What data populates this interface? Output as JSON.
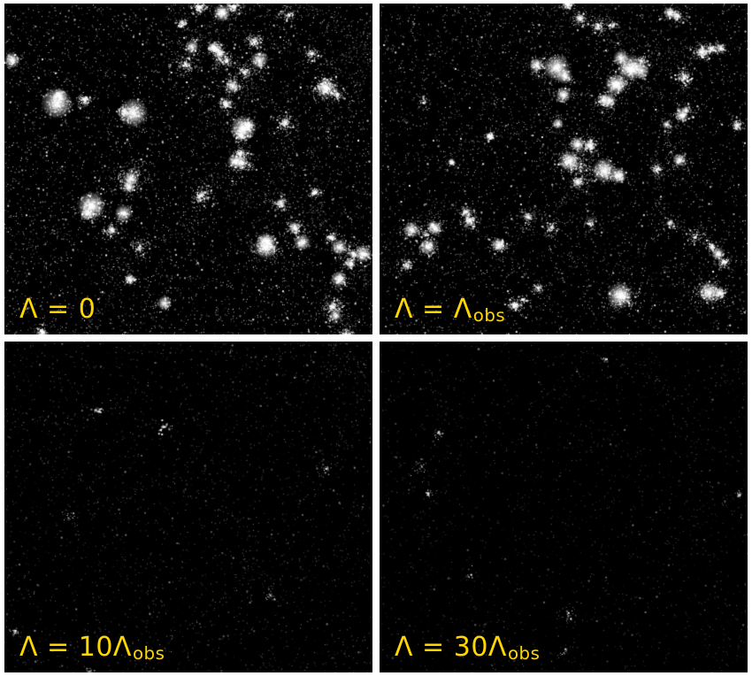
{
  "figure": {
    "frame_background": "#ffffff",
    "panel_background": "#000000",
    "label_color": "#ffd700",
    "particle_color": "#ffffff",
    "panels": [
      {
        "id": "lambda-0",
        "label": {
          "main": "Λ = 0",
          "subscript": ""
        },
        "render": {
          "seed": 101,
          "field_particles": 5200,
          "field_alpha": [
            0.14,
            0.95
          ],
          "filaments": 7,
          "filament_steps": 32,
          "filament_density": 8,
          "cluster_prob": 0.16,
          "cluster_size": [
            60,
            230
          ],
          "cluster_spread": 10,
          "core_prob": 0.7,
          "core_glow": 7,
          "major_clusters": 7,
          "extra_clusters": 9
        }
      },
      {
        "id": "lambda-obs",
        "label": {
          "main": "Λ = Λ",
          "subscript": "obs"
        },
        "render": {
          "seed": 202,
          "field_particles": 4700,
          "field_alpha": [
            0.12,
            0.9
          ],
          "filaments": 7,
          "filament_steps": 30,
          "filament_density": 7,
          "cluster_prob": 0.15,
          "cluster_size": [
            50,
            210
          ],
          "cluster_spread": 10,
          "core_prob": 0.65,
          "core_glow": 6.5,
          "major_clusters": 7,
          "extra_clusters": 8
        }
      },
      {
        "id": "lambda-10obs",
        "label": {
          "main": "Λ = 10Λ",
          "subscript": "obs"
        },
        "render": {
          "seed": 303,
          "field_particles": 2600,
          "field_alpha": [
            0.08,
            0.5
          ],
          "filaments": 5,
          "filament_steps": 26,
          "filament_density": 3,
          "cluster_prob": 0.05,
          "cluster_size": [
            12,
            40
          ],
          "cluster_spread": 8,
          "core_prob": 0.1,
          "core_glow": 2,
          "major_clusters": 0,
          "extra_clusters": 5
        }
      },
      {
        "id": "lambda-30obs",
        "label": {
          "main": "Λ = 30Λ",
          "subscript": "obs"
        },
        "render": {
          "seed": 404,
          "field_particles": 2100,
          "field_alpha": [
            0.06,
            0.42
          ],
          "filaments": 4,
          "filament_steps": 22,
          "filament_density": 2,
          "cluster_prob": 0.04,
          "cluster_size": [
            8,
            28
          ],
          "cluster_spread": 8,
          "core_prob": 0.05,
          "core_glow": 1.5,
          "major_clusters": 0,
          "extra_clusters": 3
        }
      }
    ]
  }
}
